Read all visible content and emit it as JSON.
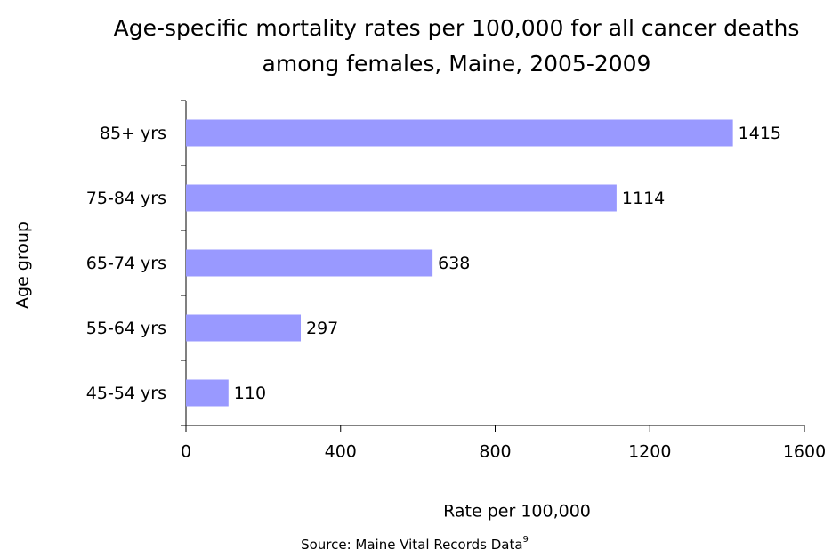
{
  "chart_data": {
    "type": "hbar",
    "title": "Age-specific mortality rates per 100,000 for all cancer deaths among females, Maine, 2005-2009",
    "categories": [
      "45-54 yrs",
      "55-64 yrs",
      "65-74 yrs",
      "75-84 yrs",
      "85+ yrs"
    ],
    "values": [
      110,
      297,
      638,
      1114,
      1415
    ],
    "color": "#9999ff",
    "xlim": [
      0,
      1600
    ],
    "xticks": [
      0,
      400,
      800,
      1200,
      1600
    ],
    "xlabel": "Rate per 100,000",
    "ylabel": "Age group",
    "source": "Source: Maine Vital Records Data",
    "source_superscript": "9"
  }
}
